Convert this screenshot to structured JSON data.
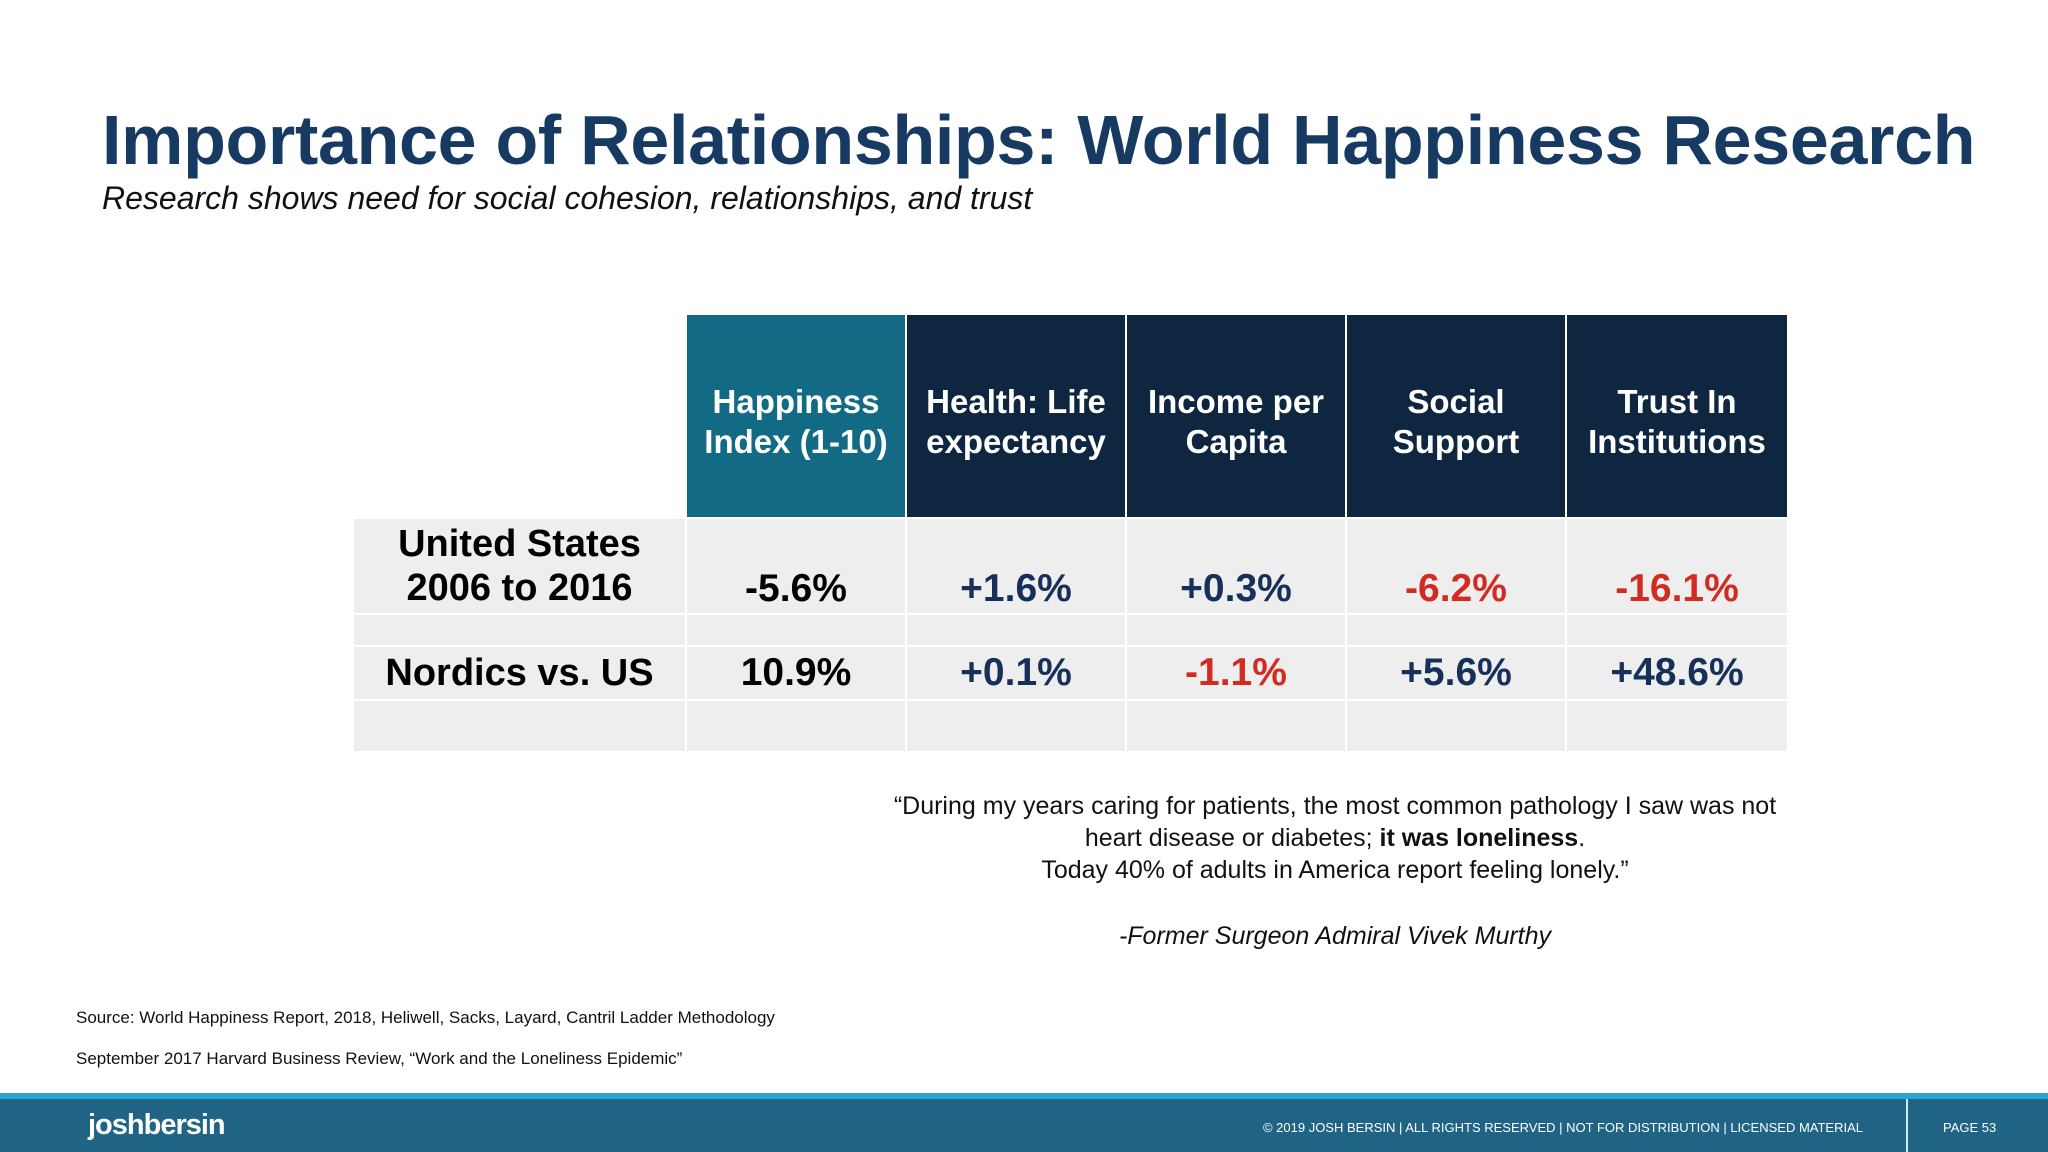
{
  "slide": {
    "title": "Importance of Relationships:  World Happiness Research",
    "subtitle": "Research shows need for social cohesion, relationships, and trust"
  },
  "table": {
    "columns": [
      {
        "line1": "Happiness",
        "line2": "Index (1-10)"
      },
      {
        "line1": "Health: Life",
        "line2": "expectancy"
      },
      {
        "line1": "Income per",
        "line2": "Capita"
      },
      {
        "line1": "Social",
        "line2": "Support"
      },
      {
        "line1": "Trust In",
        "line2": "Institutions"
      }
    ],
    "rows": [
      {
        "label_line1": "United States",
        "label_line2": "2006 to 2016",
        "values": [
          "-5.6%",
          "+1.6%",
          "+0.3%",
          "-6.2%",
          "-16.1%"
        ]
      },
      {
        "label_line1": "Nordics vs. US",
        "values": [
          "10.9%",
          "+0.1%",
          "-1.1%",
          "+5.6%",
          "+48.6%"
        ]
      }
    ],
    "colors": {
      "header_highlight": "#136a85",
      "header_dark": "#0e2640",
      "positive": "#17305a",
      "negative": "#d12b22"
    }
  },
  "quote": {
    "part1": "“During my years caring for patients, the most common pathology I saw was not heart disease or diabetes; ",
    "bold": "it was loneliness",
    "part2": ".",
    "line3": "Today 40% of adults in America report feeling lonely.”",
    "attribution": "-Former Surgeon Admiral Vivek Murthy"
  },
  "sources": [
    "Source: World Happiness Report, 2018, Heliwell, Sacks, Layard, Cantril Ladder Methodology",
    "September 2017 Harvard Business Review, “Work and the Loneliness Epidemic”"
  ],
  "footer": {
    "logo": "joshbersin",
    "copyright": "© 2019 JOSH BERSIN | ALL RIGHTS RESERVED | NOT FOR DISTRIBUTION | LICENSED MATERIAL",
    "page": "PAGE  53"
  }
}
